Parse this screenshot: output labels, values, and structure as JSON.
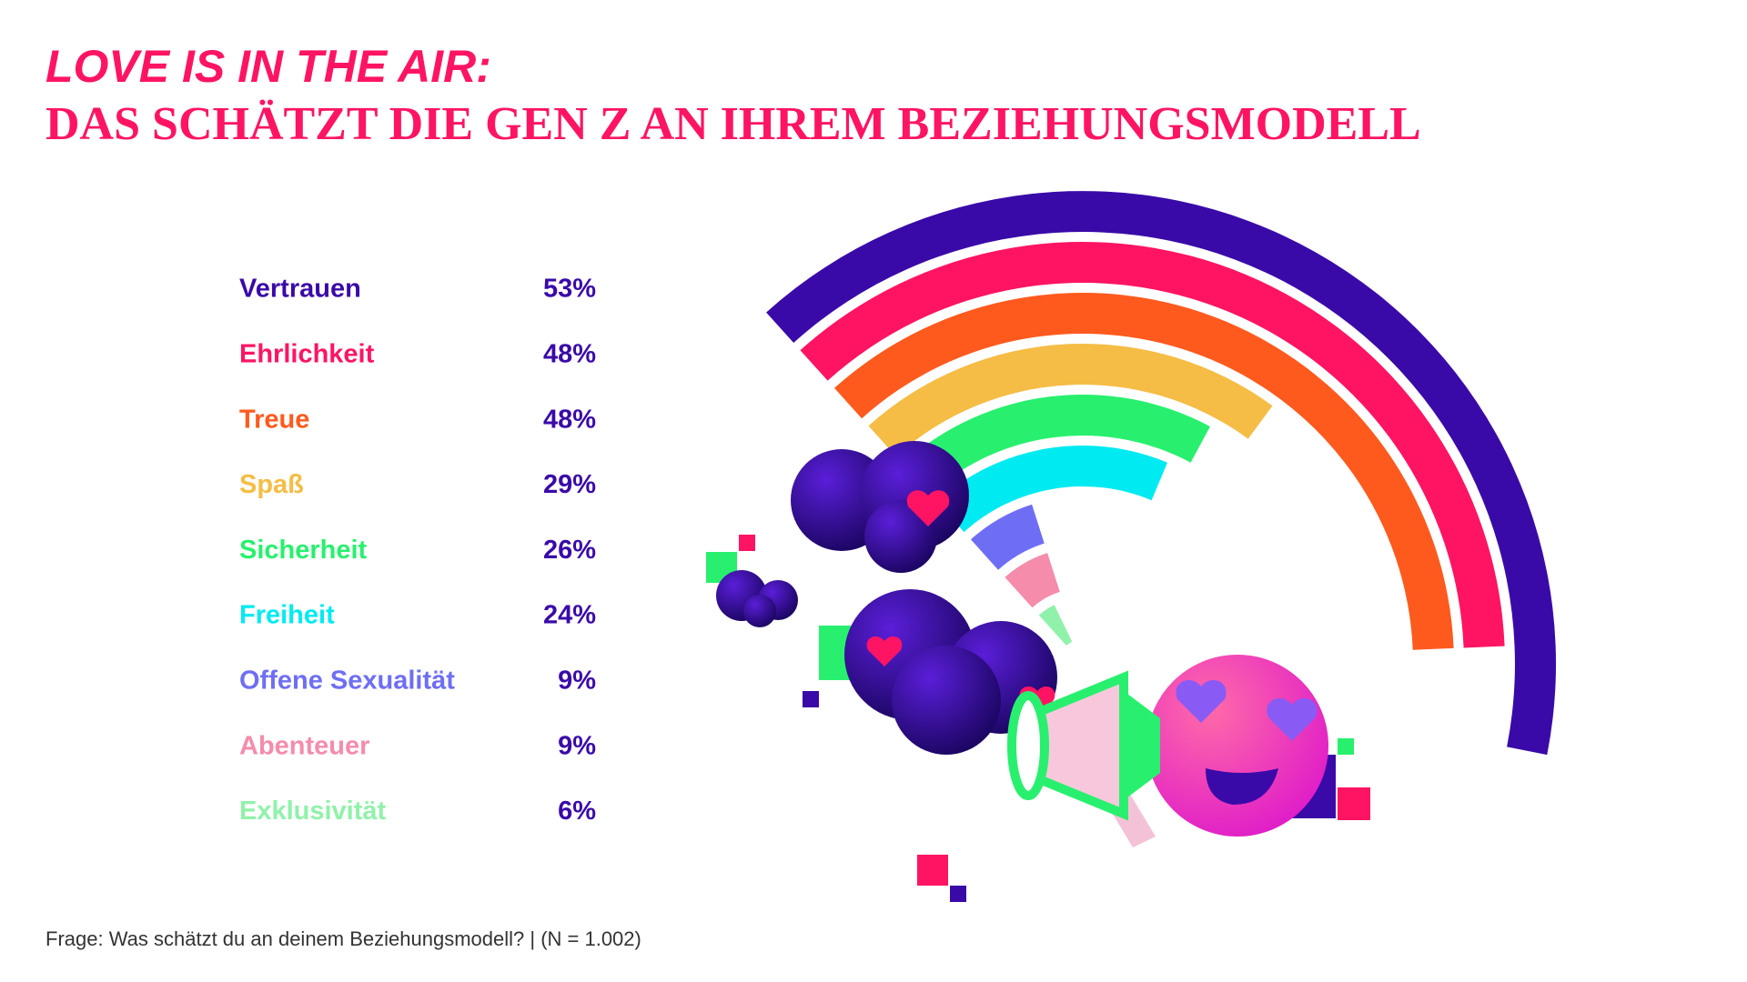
{
  "chart_data": {
    "type": "radial_bar",
    "title": "LOVE IS IN THE AIR:",
    "subtitle": "DAS SCHÄTZT DIE GEN Z AN IHREM BEZIEHUNGSMODELL",
    "categories": [
      "Vertrauen",
      "Ehrlichkeit",
      "Treue",
      "Spaß",
      "Sicherheit",
      "Freiheit",
      "Offene Sexualität",
      "Abenteuer",
      "Exklusivität"
    ],
    "values": [
      53,
      48,
      48,
      29,
      26,
      24,
      9,
      9,
      6
    ],
    "value_labels": [
      "53%",
      "48%",
      "48%",
      "29%",
      "26%",
      "24%",
      "9%",
      "9%",
      "6%"
    ],
    "colors": [
      "#3a0aa8",
      "#ff1464",
      "#ff5a1e",
      "#f5bd45",
      "#28f06e",
      "#00eaf2",
      "#6e6ef5",
      "#f58cab",
      "#90f2aa"
    ],
    "value_label_color": "#3a0aa8",
    "footnote": "Frage: Was schätzt du an deinem Beziehungsmodell? | (N = 1.002)"
  }
}
